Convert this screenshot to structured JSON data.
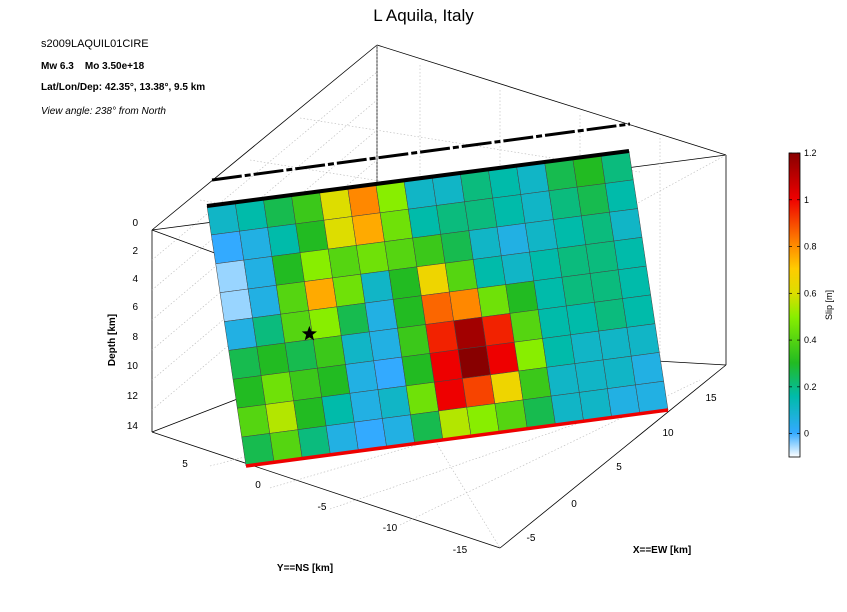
{
  "header": {
    "title": "L Aquila, Italy",
    "event_id": "s2009LAQUIL01CIRE",
    "magnitude": "Mw 6.3",
    "moment": "Mo 3.50e+18",
    "location": "Lat/Lon/Dep: 42.35°, 13.38°, 9.5 km",
    "view_angle": "View angle: 238° from North"
  },
  "chart_data": {
    "type": "heatmap",
    "title": "L Aquila, Italy",
    "axes": {
      "depth": {
        "label": "Depth [km]",
        "ticks": [
          0,
          2,
          4,
          6,
          8,
          10,
          12,
          14
        ]
      },
      "ns": {
        "label": "Y==NS [km]",
        "ticks": [
          5,
          0,
          -5,
          -10,
          -15
        ]
      },
      "ew": {
        "label": "X==EW [km]",
        "ticks": [
          -5,
          0,
          5,
          10,
          15
        ]
      }
    },
    "colorbar": {
      "label": "Slip [m]",
      "range": [
        -0.1,
        1.2
      ],
      "ticks": [
        "1.2",
        "1",
        "0.8",
        "0.6",
        "0.4",
        "0.2",
        "0"
      ]
    },
    "grid": {
      "rows": 9,
      "cols": 15
    },
    "slip_m": [
      [
        0.1,
        0.15,
        0.25,
        0.35,
        0.6,
        0.8,
        0.5,
        0.1,
        0.1,
        0.2,
        0.15,
        0.1,
        0.25,
        0.3,
        0.2
      ],
      [
        0.0,
        0.05,
        0.15,
        0.3,
        0.6,
        0.75,
        0.45,
        0.15,
        0.2,
        0.2,
        0.15,
        0.1,
        0.2,
        0.25,
        0.15
      ],
      [
        -0.05,
        0.05,
        0.3,
        0.5,
        0.4,
        0.45,
        0.4,
        0.35,
        0.25,
        0.1,
        0.05,
        0.1,
        0.15,
        0.2,
        0.1
      ],
      [
        -0.05,
        0.05,
        0.4,
        0.75,
        0.45,
        0.1,
        0.3,
        0.65,
        0.4,
        0.15,
        0.1,
        0.15,
        0.2,
        0.2,
        0.15
      ],
      [
        0.05,
        0.2,
        0.4,
        0.5,
        0.25,
        0.05,
        0.3,
        0.85,
        0.8,
        0.45,
        0.3,
        0.15,
        0.2,
        0.2,
        0.15
      ],
      [
        0.25,
        0.3,
        0.25,
        0.35,
        0.1,
        0.05,
        0.35,
        0.95,
        1.15,
        0.95,
        0.4,
        0.15,
        0.15,
        0.2,
        0.15
      ],
      [
        0.3,
        0.45,
        0.35,
        0.3,
        0.05,
        0.0,
        0.3,
        1.0,
        1.2,
        1.0,
        0.5,
        0.15,
        0.1,
        0.1,
        0.1
      ],
      [
        0.4,
        0.55,
        0.3,
        0.15,
        0.05,
        0.1,
        0.45,
        1.0,
        0.9,
        0.65,
        0.35,
        0.1,
        0.1,
        0.1,
        0.05
      ],
      [
        0.25,
        0.4,
        0.2,
        0.05,
        0.0,
        0.05,
        0.25,
        0.55,
        0.5,
        0.4,
        0.25,
        0.1,
        0.1,
        0.05,
        0.05
      ]
    ],
    "hypocenter": {
      "row": 4.8,
      "col": 2.9
    }
  }
}
